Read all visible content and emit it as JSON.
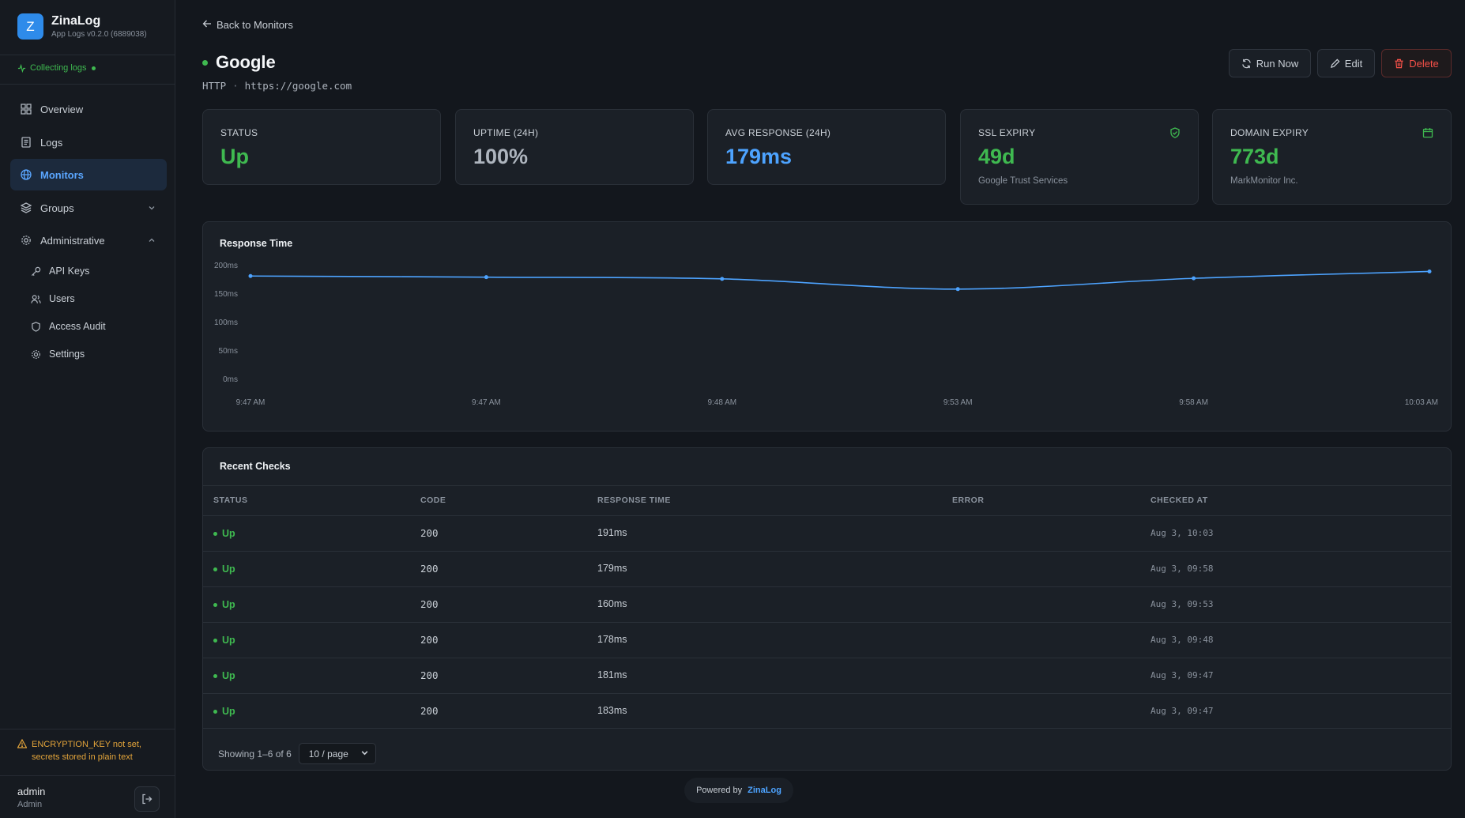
{
  "app": {
    "name": "ZinaLog",
    "logo_letter": "Z",
    "version": "App Logs v0.2.0 (6889038)",
    "collecting": "Collecting logs"
  },
  "sidebar": {
    "items": [
      {
        "label": "Overview",
        "icon": "grid-icon"
      },
      {
        "label": "Logs",
        "icon": "scroll-icon"
      },
      {
        "label": "Monitors",
        "icon": "globe-icon",
        "active": true
      },
      {
        "label": "Groups",
        "icon": "layers-icon"
      },
      {
        "label": "Administrative",
        "icon": "gear-icon"
      }
    ],
    "admin_items": [
      {
        "label": "API Keys",
        "icon": "key-icon"
      },
      {
        "label": "Users",
        "icon": "users-icon"
      },
      {
        "label": "Access Audit",
        "icon": "shield-icon"
      },
      {
        "label": "Settings",
        "icon": "gear-icon"
      }
    ],
    "warning": "ENCRYPTION_KEY not set, secrets stored in plain text",
    "user": {
      "name": "admin",
      "role": "Admin"
    }
  },
  "header": {
    "back": "Back to Monitors",
    "title": "Google",
    "type": "HTTP",
    "separator": "·",
    "url": "https://google.com",
    "buttons": {
      "run": "Run Now",
      "edit": "Edit",
      "delete": "Delete"
    }
  },
  "stats": [
    {
      "label": "STATUS",
      "value": "Up",
      "color": "#3fb950"
    },
    {
      "label": "UPTIME (24H)",
      "value": "100%",
      "color": "#aeb5be"
    },
    {
      "label": "AVG RESPONSE (24H)",
      "value": "179ms",
      "color": "#4da3ff"
    },
    {
      "label": "SSL EXPIRY",
      "value": "49d",
      "sub": "Google Trust Services",
      "color": "#3fb950",
      "icon": "shield-check-icon"
    },
    {
      "label": "DOMAIN EXPIRY",
      "value": "773d",
      "sub": "MarkMonitor Inc.",
      "color": "#3fb950",
      "icon": "calendar-icon"
    }
  ],
  "chart": {
    "title": "Response Time"
  },
  "chart_data": {
    "type": "line",
    "title": "Response Time",
    "x": [
      "9:47 AM",
      "9:47 AM",
      "9:48 AM",
      "9:53 AM",
      "9:58 AM",
      "10:03 AM"
    ],
    "series": [
      {
        "values": [
          183,
          181,
          178,
          160,
          179,
          191
        ]
      }
    ],
    "ylim": [
      0,
      200
    ],
    "yticks": [
      "200ms",
      "150ms",
      "100ms",
      "50ms",
      "0ms"
    ],
    "ytick_values": [
      200,
      150,
      100,
      50,
      0
    ],
    "grid": false,
    "color": "#4da3ff"
  },
  "checks": {
    "title": "Recent Checks",
    "columns": [
      "STATUS",
      "CODE",
      "RESPONSE TIME",
      "ERROR",
      "CHECKED AT"
    ],
    "rows": [
      {
        "status": "Up",
        "code": "200",
        "response": "191ms",
        "error": "",
        "checked": "Aug 3, 10:03"
      },
      {
        "status": "Up",
        "code": "200",
        "response": "179ms",
        "error": "",
        "checked": "Aug 3, 09:58"
      },
      {
        "status": "Up",
        "code": "200",
        "response": "160ms",
        "error": "",
        "checked": "Aug 3, 09:53"
      },
      {
        "status": "Up",
        "code": "200",
        "response": "178ms",
        "error": "",
        "checked": "Aug 3, 09:48"
      },
      {
        "status": "Up",
        "code": "200",
        "response": "181ms",
        "error": "",
        "checked": "Aug 3, 09:47"
      },
      {
        "status": "Up",
        "code": "200",
        "response": "183ms",
        "error": "",
        "checked": "Aug 3, 09:47"
      }
    ],
    "showing": "Showing 1–6 of 6",
    "page_size": "10 / page"
  },
  "footer": {
    "powered": "Powered by",
    "brand": "ZinaLog"
  }
}
